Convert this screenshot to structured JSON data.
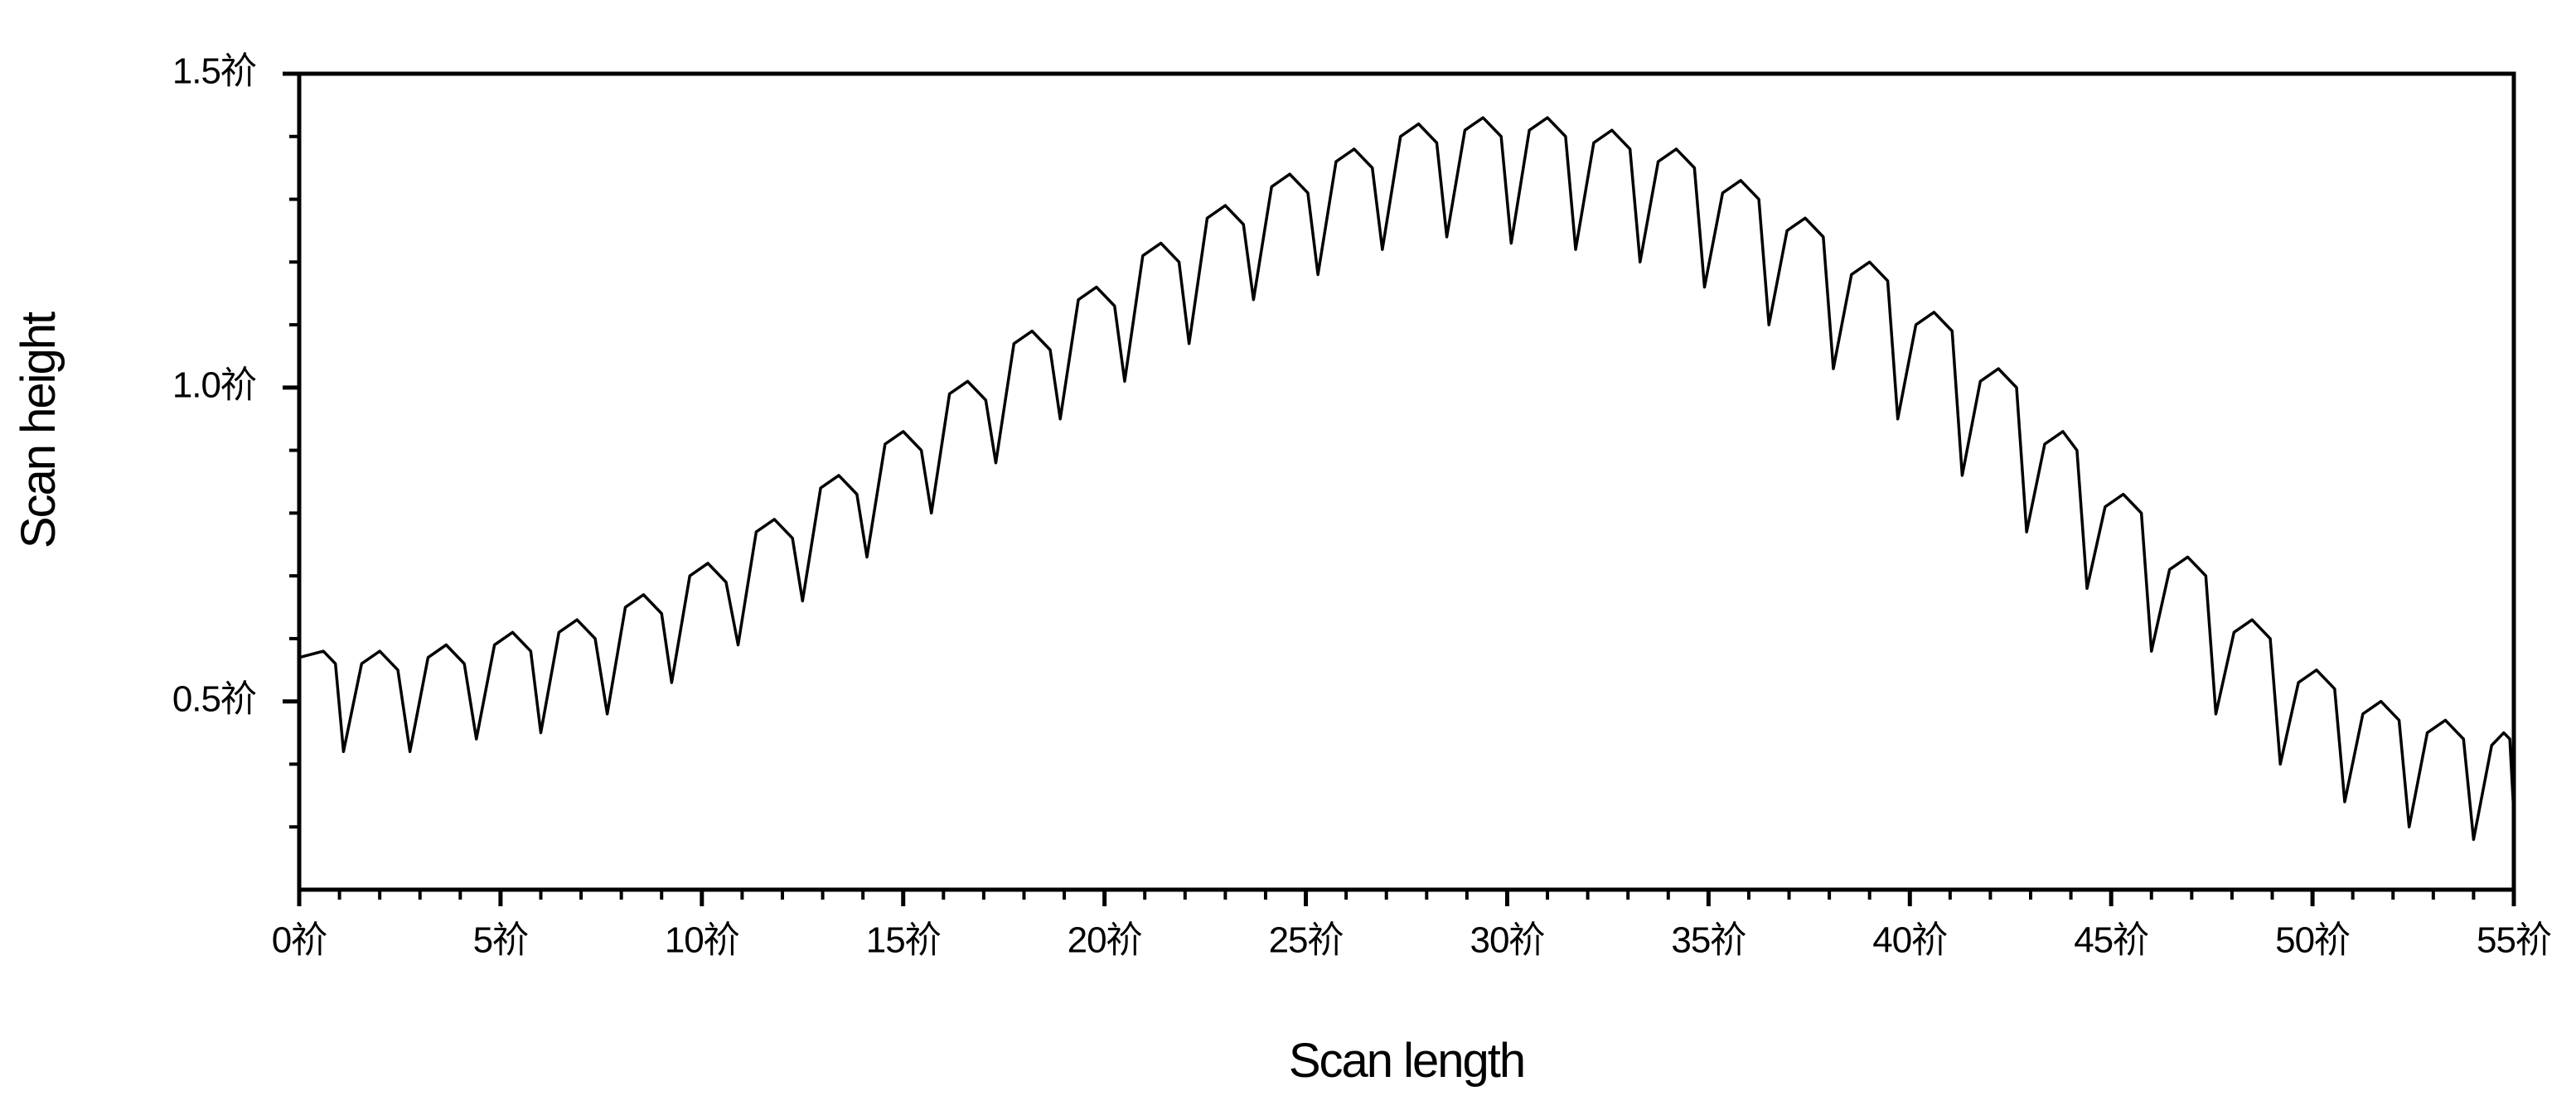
{
  "chart_data": {
    "type": "line",
    "xlabel": "Scan length",
    "ylabel": "Scan height",
    "color": "#000000",
    "xlim": [
      0,
      55
    ],
    "ylim": [
      0.2,
      1.5
    ],
    "xticks": [
      {
        "value": 0,
        "label": "0祄"
      },
      {
        "value": 5,
        "label": "5祄"
      },
      {
        "value": 10,
        "label": "10祄"
      },
      {
        "value": 15,
        "label": "15祄"
      },
      {
        "value": 20,
        "label": "20祄"
      },
      {
        "value": 25,
        "label": "25祄"
      },
      {
        "value": 30,
        "label": "30祄"
      },
      {
        "value": 35,
        "label": "35祄"
      },
      {
        "value": 40,
        "label": "40祄"
      },
      {
        "value": 45,
        "label": "45祄"
      },
      {
        "value": 50,
        "label": "50祄"
      },
      {
        "value": 55,
        "label": "55祄"
      }
    ],
    "yticks": [
      {
        "value": 0.5,
        "label": "0.5祄"
      },
      {
        "value": 1.0,
        "label": "1.0祄"
      },
      {
        "value": 1.5,
        "label": "1.5祄"
      }
    ],
    "xminorticks": [
      1,
      2,
      3,
      4,
      6,
      7,
      8,
      9,
      11,
      12,
      13,
      14,
      16,
      17,
      18,
      19,
      21,
      22,
      23,
      24,
      26,
      27,
      28,
      29,
      31,
      32,
      33,
      34,
      36,
      37,
      38,
      39,
      41,
      42,
      43,
      44,
      46,
      47,
      48,
      49,
      51,
      52,
      53,
      54
    ],
    "yminorticks": [
      0.3,
      0.4,
      0.6,
      0.7,
      0.8,
      0.9,
      1.1,
      1.2,
      1.3,
      1.4
    ],
    "x": [
      0,
      0.6,
      0.9,
      1.1,
      1.55,
      2.0,
      2.45,
      2.75,
      3.2,
      3.65,
      4.1,
      4.4,
      4.85,
      5.3,
      5.75,
      6.0,
      6.45,
      6.9,
      7.35,
      7.65,
      8.1,
      8.55,
      9.0,
      9.25,
      9.7,
      10.15,
      10.6,
      10.9,
      11.35,
      11.8,
      12.25,
      12.5,
      12.95,
      13.4,
      13.85,
      14.1,
      14.55,
      15.0,
      15.45,
      15.7,
      16.15,
      16.6,
      17.05,
      17.3,
      17.75,
      18.2,
      18.65,
      18.9,
      19.35,
      19.8,
      20.25,
      20.5,
      20.95,
      21.4,
      21.85,
      22.1,
      22.55,
      23.0,
      23.45,
      23.7,
      24.15,
      24.6,
      25.05,
      25.3,
      25.75,
      26.2,
      26.65,
      26.9,
      27.35,
      27.8,
      28.25,
      28.5,
      28.95,
      29.4,
      29.85,
      30.1,
      30.55,
      31.0,
      31.45,
      31.7,
      32.15,
      32.6,
      33.05,
      33.3,
      33.75,
      34.2,
      34.65,
      34.9,
      35.35,
      35.8,
      36.25,
      36.5,
      36.95,
      37.4,
      37.85,
      38.1,
      38.55,
      39.0,
      39.45,
      39.7,
      40.15,
      40.6,
      41.05,
      41.3,
      41.75,
      42.2,
      42.65,
      42.9,
      43.35,
      43.8,
      44.15,
      44.4,
      44.85,
      45.3,
      45.75,
      46.0,
      46.45,
      46.9,
      47.35,
      47.6,
      48.05,
      48.5,
      48.95,
      49.2,
      49.65,
      50.1,
      50.55,
      50.8,
      51.25,
      51.7,
      52.15,
      52.4,
      52.85,
      53.3,
      53.75,
      54.0,
      54.45,
      54.75,
      54.9,
      55
    ],
    "values": [
      0.57,
      0.58,
      0.56,
      0.42,
      0.56,
      0.58,
      0.55,
      0.42,
      0.57,
      0.59,
      0.56,
      0.44,
      0.59,
      0.61,
      0.58,
      0.45,
      0.61,
      0.63,
      0.6,
      0.48,
      0.65,
      0.67,
      0.64,
      0.53,
      0.7,
      0.72,
      0.69,
      0.59,
      0.77,
      0.79,
      0.76,
      0.66,
      0.84,
      0.86,
      0.83,
      0.73,
      0.91,
      0.93,
      0.9,
      0.8,
      0.99,
      1.01,
      0.98,
      0.88,
      1.07,
      1.09,
      1.06,
      0.95,
      1.14,
      1.16,
      1.13,
      1.01,
      1.21,
      1.23,
      1.2,
      1.07,
      1.27,
      1.29,
      1.26,
      1.14,
      1.32,
      1.34,
      1.31,
      1.18,
      1.36,
      1.38,
      1.35,
      1.22,
      1.4,
      1.42,
      1.39,
      1.24,
      1.41,
      1.43,
      1.4,
      1.23,
      1.41,
      1.43,
      1.4,
      1.22,
      1.39,
      1.41,
      1.38,
      1.2,
      1.36,
      1.38,
      1.35,
      1.16,
      1.31,
      1.33,
      1.3,
      1.1,
      1.25,
      1.27,
      1.24,
      1.03,
      1.18,
      1.2,
      1.17,
      0.95,
      1.1,
      1.12,
      1.09,
      0.86,
      1.01,
      1.03,
      1.0,
      0.77,
      0.91,
      0.93,
      0.9,
      0.68,
      0.81,
      0.83,
      0.8,
      0.58,
      0.71,
      0.73,
      0.7,
      0.48,
      0.61,
      0.63,
      0.6,
      0.4,
      0.53,
      0.55,
      0.52,
      0.34,
      0.48,
      0.5,
      0.47,
      0.3,
      0.45,
      0.47,
      0.44,
      0.28,
      0.43,
      0.45,
      0.44,
      0.32
    ]
  }
}
